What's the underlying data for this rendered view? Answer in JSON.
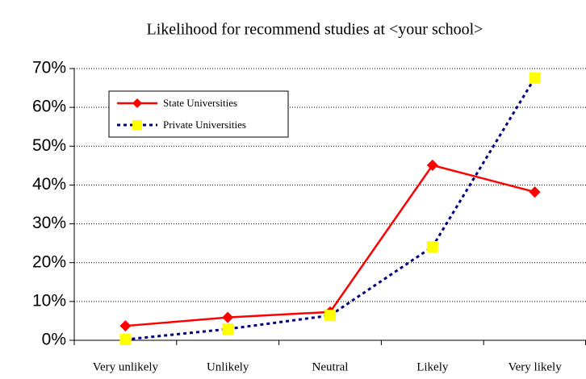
{
  "chart_data": {
    "type": "line",
    "title": "Likelihood for recommend studies at <your school>",
    "categories": [
      "Very unlikely",
      "Unlikely",
      "Neutral",
      "Likely",
      "Very likely"
    ],
    "series": [
      {
        "name": "State Universities",
        "color": "#ff0000",
        "marker": "diamond",
        "linestyle": "solid",
        "values": [
          3.7,
          5.9,
          7.3,
          45.1,
          38.2
        ]
      },
      {
        "name": "Private Universities",
        "color": "#000080",
        "marker_color": "#ffff00",
        "marker": "square",
        "linestyle": "dotted",
        "values": [
          0.2,
          2.9,
          6.4,
          24.1,
          67.6
        ]
      }
    ],
    "ylim": [
      0,
      70
    ],
    "yticks": [
      {
        "value": 0,
        "label": "0%"
      },
      {
        "value": 10,
        "label": "10%"
      },
      {
        "value": 20,
        "label": "20%"
      },
      {
        "value": 30,
        "label": "30%"
      },
      {
        "value": 40,
        "label": "40%"
      },
      {
        "value": 50,
        "label": "50%"
      },
      {
        "value": 60,
        "label": "60%"
      },
      {
        "value": 70,
        "label": "70%"
      }
    ],
    "grid": true,
    "legend": "upper left"
  }
}
